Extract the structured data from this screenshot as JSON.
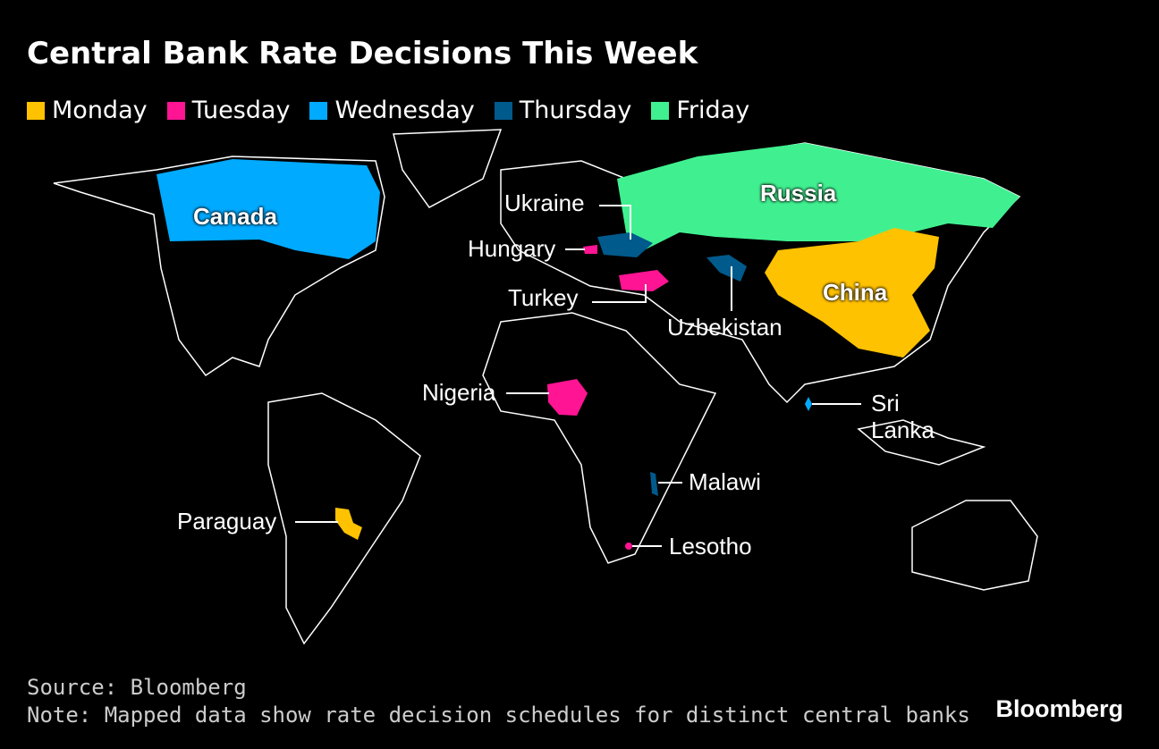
{
  "title": "Central Bank Rate Decisions This Week",
  "legend": [
    {
      "name": "Monday",
      "color": "#ffc200"
    },
    {
      "name": "Tuesday",
      "color": "#ff1493"
    },
    {
      "name": "Wednesday",
      "color": "#00aaff"
    },
    {
      "name": "Thursday",
      "color": "#005a8c"
    },
    {
      "name": "Friday",
      "color": "#40f090"
    }
  ],
  "countries": [
    {
      "label": "Canada",
      "day": "Wednesday"
    },
    {
      "label": "Russia",
      "day": "Friday"
    },
    {
      "label": "China",
      "day": "Monday"
    },
    {
      "label": "Ukraine",
      "day": "Thursday"
    },
    {
      "label": "Hungary",
      "day": "Tuesday"
    },
    {
      "label": "Turkey",
      "day": "Tuesday"
    },
    {
      "label": "Uzbekistan",
      "day": "Thursday"
    },
    {
      "label": "Nigeria",
      "day": "Tuesday"
    },
    {
      "label": "Sri Lanka",
      "day": "Wednesday"
    },
    {
      "label": "Malawi",
      "day": "Thursday"
    },
    {
      "label": "Paraguay",
      "day": "Monday"
    },
    {
      "label": "Lesotho",
      "day": "Tuesday"
    }
  ],
  "source": "Source: Bloomberg",
  "note": "Note: Mapped data show rate decision schedules for distinct central banks",
  "brand": "Bloomberg"
}
